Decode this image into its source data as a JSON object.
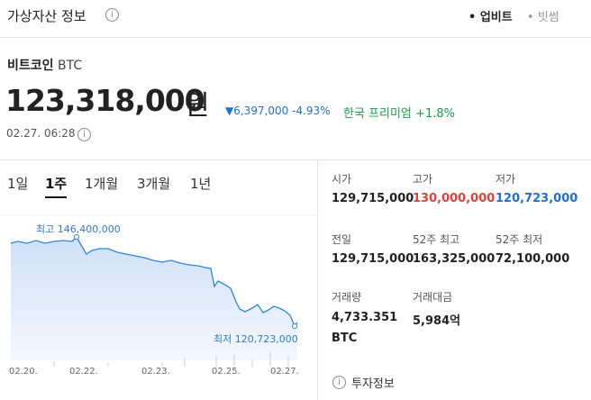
{
  "header": {
    "title": "가상자산 정보",
    "exchanges": [
      {
        "name": "업비트",
        "active": true
      },
      {
        "name": "빗썸",
        "active": false
      }
    ]
  },
  "coin": {
    "name": "비트코인",
    "symbol": "BTC"
  },
  "price": {
    "value": "123,318,000",
    "unit": "원",
    "change": "6,397,000",
    "change_pct": "-4.93%",
    "premium_label": "한국 프리미엄",
    "premium_value": "+1.8%",
    "timestamp": "02.27. 06:28"
  },
  "tabs": {
    "items": [
      "1일",
      "1주",
      "1개월",
      "3개월",
      "1년"
    ],
    "active": 1
  },
  "chart": {
    "high_label": "최고 146,400,000",
    "low_label": "최저 120,723,000",
    "dates": [
      "02.20.",
      "02.22.",
      "02.23.",
      "02.25.",
      "02.27."
    ]
  },
  "stats": [
    {
      "label": "시가",
      "value": "129,715,000"
    },
    {
      "label": "고가",
      "value": "130,000,000"
    },
    {
      "label": "저가",
      "value": "120,723,000"
    },
    {
      "label": "전일",
      "value": "129,715,000"
    },
    {
      "label": "52주 최고",
      "value": "163,325,000"
    },
    {
      "label": "52주 최저",
      "value": "72,100,000"
    },
    {
      "label": "거래량",
      "value": "4,733.351",
      "unit": "BTC"
    },
    {
      "label": "거래대금",
      "value": "5,984억"
    }
  ],
  "invest_info": "투자정보"
}
